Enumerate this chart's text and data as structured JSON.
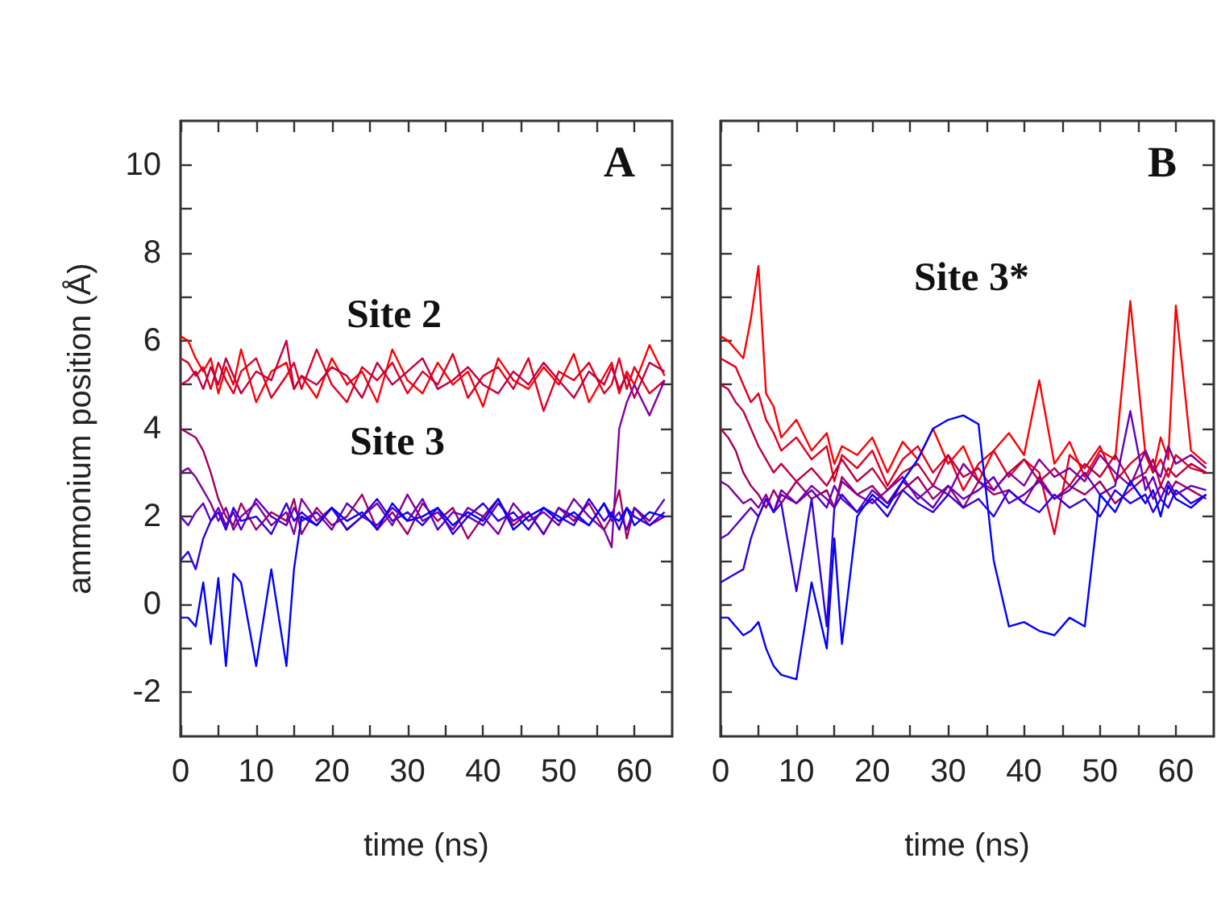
{
  "chart_data": [
    {
      "type": "line",
      "title": "A",
      "xlabel": "time (ns)",
      "ylabel": "ammonium position (Å)",
      "xlim": [
        0,
        65
      ],
      "ylim": [
        -3,
        11
      ],
      "xticks": [
        0,
        {
          "value": 5,
          "label": null
        },
        10,
        {
          "value": 15,
          "label": null
        },
        20,
        {
          "value": 25,
          "label": null
        },
        30,
        {
          "value": 35,
          "label": null
        },
        40,
        {
          "value": 45,
          "label": null
        },
        50,
        {
          "value": 55,
          "label": null
        },
        60
      ],
      "yticks": [
        -2,
        {
          "value": -1,
          "label": null
        },
        0,
        {
          "value": 1,
          "label": null
        },
        2,
        {
          "value": 3,
          "label": null
        },
        4,
        {
          "value": 5,
          "label": null
        },
        6,
        {
          "value": 7,
          "label": null
        },
        8,
        {
          "value": 9,
          "label": null
        },
        10
      ],
      "grid": false,
      "marker": "none",
      "line_style": "solid",
      "annotations": [
        "Site 2",
        "Site 3"
      ],
      "x": [
        0,
        1,
        2,
        3,
        4,
        5,
        6,
        7,
        8,
        10,
        12,
        14,
        15,
        16,
        18,
        20,
        22,
        24,
        26,
        28,
        30,
        32,
        34,
        36,
        38,
        40,
        42,
        44,
        46,
        48,
        50,
        52,
        54,
        56,
        57,
        58,
        59,
        60,
        62,
        64
      ],
      "series": [
        {
          "color": "#ff0000",
          "values": [
            6.1,
            6.0,
            5.6,
            5.3,
            5.6,
            4.8,
            5.4,
            5.0,
            5.8,
            4.6,
            5.3,
            5.5,
            4.9,
            5.2,
            4.7,
            5.6,
            5.0,
            5.3,
            4.6,
            5.8,
            5.1,
            4.8,
            5.5,
            5.0,
            5.3,
            4.5,
            5.6,
            5.1,
            4.9,
            5.4,
            5.0,
            5.7,
            4.6,
            5.2,
            5.5,
            4.8,
            5.3,
            5.0,
            5.9,
            5.2
          ]
        },
        {
          "color": "#e00020",
          "values": [
            5.6,
            5.5,
            5.2,
            5.4,
            4.9,
            5.5,
            5.1,
            4.8,
            5.3,
            5.6,
            4.7,
            5.2,
            5.5,
            4.9,
            5.8,
            5.0,
            4.6,
            5.4,
            5.1,
            5.5,
            4.8,
            5.3,
            5.0,
            5.7,
            4.7,
            5.2,
            5.4,
            4.9,
            5.6,
            4.4,
            5.3,
            5.1,
            5.5,
            4.8,
            5.0,
            5.6,
            4.9,
            5.4,
            4.8,
            5.1
          ]
        },
        {
          "color": "#c00040",
          "values": [
            5.0,
            5.1,
            5.3,
            4.9,
            5.4,
            5.0,
            5.6,
            5.2,
            4.8,
            5.3,
            5.1,
            6.0,
            4.9,
            5.2,
            5.0,
            5.4,
            5.2,
            4.7,
            5.5,
            5.0,
            5.3,
            5.6,
            4.9,
            5.1,
            5.4,
            5.0,
            4.8,
            5.3,
            5.0,
            5.5,
            5.1,
            4.7,
            5.3,
            5.0,
            5.4,
            4.9,
            5.2,
            4.7,
            5.5,
            5.3
          ]
        },
        {
          "color": "#a00060",
          "values": [
            4.0,
            3.9,
            3.8,
            3.5,
            3.0,
            2.4,
            2.0,
            1.8,
            2.3,
            1.7,
            2.1,
            1.9,
            2.4,
            1.6,
            2.2,
            1.8,
            2.0,
            2.5,
            1.7,
            2.1,
            1.6,
            2.3,
            1.9,
            2.2,
            1.5,
            2.0,
            2.4,
            1.8,
            2.1,
            1.6,
            2.2,
            1.9,
            2.3,
            1.7,
            2.0,
            2.6,
            1.5,
            2.2,
            1.8,
            2.0
          ]
        },
        {
          "color": "#8000a0",
          "values": [
            3.0,
            3.1,
            2.9,
            2.6,
            2.3,
            1.9,
            2.2,
            1.7,
            2.0,
            2.3,
            1.8,
            2.1,
            1.6,
            2.4,
            1.9,
            2.2,
            1.7,
            2.0,
            2.3,
            1.8,
            2.5,
            1.9,
            2.1,
            1.7,
            2.2,
            2.0,
            1.6,
            2.3,
            1.9,
            2.1,
            1.8,
            2.4,
            2.0,
            1.7,
            1.3,
            4.0,
            4.6,
            5.0,
            4.3,
            5.1
          ]
        },
        {
          "color": "#6000c0",
          "values": [
            2.0,
            1.8,
            2.1,
            2.3,
            1.9,
            2.2,
            1.8,
            2.1,
            1.7,
            2.4,
            2.0,
            1.8,
            2.2,
            1.9,
            2.1,
            1.7,
            2.3,
            2.0,
            1.8,
            2.2,
            1.9,
            2.4,
            1.7,
            2.1,
            2.0,
            1.8,
            2.3,
            1.9,
            2.1,
            1.6,
            2.2,
            2.0,
            1.8,
            2.3,
            1.9,
            2.1,
            1.7,
            2.2,
            1.9,
            2.4
          ]
        },
        {
          "color": "#3000e0",
          "values": [
            1.0,
            1.2,
            0.8,
            1.5,
            1.9,
            2.1,
            1.7,
            2.2,
            1.9,
            2.0,
            1.6,
            2.3,
            1.9,
            2.1,
            1.8,
            2.2,
            1.7,
            2.0,
            2.4,
            1.9,
            2.1,
            1.8,
            2.2,
            1.6,
            2.0,
            2.3,
            1.9,
            2.1,
            1.7,
            2.2,
            2.0,
            1.8,
            2.4,
            1.9,
            2.1,
            1.7,
            2.2,
            2.0,
            1.8,
            2.1
          ]
        },
        {
          "color": "#0000ff",
          "values": [
            -0.3,
            -0.3,
            -0.5,
            0.5,
            -0.9,
            0.6,
            -1.4,
            0.7,
            0.5,
            -1.4,
            0.8,
            -1.4,
            0.8,
            2.0,
            1.8,
            2.2,
            1.9,
            2.1,
            1.7,
            2.3,
            1.9,
            2.0,
            2.2,
            1.8,
            2.1,
            1.9,
            2.4,
            1.7,
            2.0,
            2.2,
            1.9,
            2.1,
            1.8,
            2.3,
            2.0,
            1.9,
            2.2,
            1.8,
            2.1,
            2.0
          ]
        }
      ]
    },
    {
      "type": "line",
      "title": "B",
      "xlabel": "time (ns)",
      "xlim": [
        0,
        65
      ],
      "ylim": [
        -3,
        11
      ],
      "tick_labels": "x",
      "xticks": [
        0,
        {
          "value": 5,
          "label": null
        },
        10,
        {
          "value": 15,
          "label": null
        },
        20,
        {
          "value": 25,
          "label": null
        },
        30,
        {
          "value": 35,
          "label": null
        },
        40,
        {
          "value": 45,
          "label": null
        },
        50,
        {
          "value": 55,
          "label": null
        },
        60
      ],
      "yticks": [
        {
          "value": -2,
          "label": null
        },
        {
          "value": -1,
          "label": null
        },
        {
          "value": 0,
          "label": null
        },
        {
          "value": 1,
          "label": null
        },
        {
          "value": 2,
          "label": null
        },
        {
          "value": 3,
          "label": null
        },
        {
          "value": 4,
          "label": null
        },
        {
          "value": 5,
          "label": null
        },
        {
          "value": 6,
          "label": null
        },
        {
          "value": 7,
          "label": null
        },
        {
          "value": 8,
          "label": null
        },
        {
          "value": 9,
          "label": null
        },
        {
          "value": 10,
          "label": null
        }
      ],
      "grid": false,
      "marker": "none",
      "line_style": "solid",
      "annotations": [
        "Site 3*"
      ],
      "x": [
        0,
        1,
        2,
        3,
        4,
        5,
        6,
        7,
        8,
        10,
        12,
        14,
        15,
        16,
        18,
        20,
        22,
        24,
        26,
        28,
        30,
        32,
        34,
        36,
        38,
        40,
        42,
        44,
        46,
        48,
        50,
        52,
        54,
        56,
        57,
        58,
        59,
        60,
        62,
        64
      ],
      "series": [
        {
          "color": "#ff0000",
          "values": [
            6.1,
            6.0,
            5.8,
            5.6,
            6.5,
            7.7,
            4.8,
            4.5,
            3.8,
            4.2,
            3.5,
            3.9,
            3.2,
            3.6,
            3.4,
            3.8,
            3.0,
            3.7,
            3.3,
            4.0,
            3.2,
            3.6,
            2.8,
            3.5,
            3.9,
            3.4,
            5.1,
            3.2,
            3.7,
            2.9,
            3.5,
            3.3,
            6.9,
            3.4,
            3.0,
            3.8,
            3.3,
            6.8,
            3.5,
            3.2
          ]
        },
        {
          "color": "#e00020",
          "values": [
            5.6,
            5.5,
            5.4,
            5.0,
            4.6,
            4.8,
            4.2,
            3.9,
            3.5,
            3.8,
            3.3,
            3.6,
            2.8,
            3.4,
            3.1,
            3.5,
            2.7,
            3.3,
            3.6,
            3.0,
            3.4,
            2.6,
            3.2,
            3.5,
            2.9,
            3.3,
            3.0,
            1.6,
            3.4,
            3.1,
            3.6,
            2.8,
            3.2,
            3.5,
            3.0,
            3.3,
            2.9,
            3.4,
            3.1,
            3.0
          ]
        },
        {
          "color": "#c00040",
          "values": [
            5.0,
            4.9,
            4.6,
            4.4,
            4.0,
            3.6,
            3.3,
            3.0,
            3.2,
            2.8,
            3.1,
            2.7,
            3.0,
            3.3,
            2.8,
            3.1,
            2.6,
            3.0,
            3.2,
            2.7,
            3.4,
            2.9,
            3.1,
            2.6,
            3.0,
            3.3,
            2.8,
            3.1,
            2.7,
            3.2,
            2.9,
            3.4,
            2.8,
            3.0,
            3.3,
            2.7,
            3.1,
            2.9,
            3.2,
            3.0
          ]
        },
        {
          "color": "#a00060",
          "values": [
            4.0,
            3.8,
            3.5,
            3.0,
            2.7,
            2.5,
            2.2,
            2.6,
            2.3,
            2.8,
            2.4,
            2.6,
            2.2,
            2.9,
            2.5,
            2.7,
            2.3,
            2.6,
            2.9,
            2.4,
            2.7,
            2.2,
            2.8,
            2.5,
            2.6,
            2.3,
            2.9,
            2.4,
            2.7,
            2.5,
            2.8,
            2.3,
            2.6,
            2.9,
            2.4,
            2.7,
            2.5,
            2.8,
            2.6,
            2.4
          ]
        },
        {
          "color": "#8000a0",
          "values": [
            2.8,
            2.7,
            2.5,
            2.3,
            2.4,
            2.2,
            2.5,
            2.1,
            2.6,
            2.3,
            2.7,
            2.4,
            2.2,
            2.8,
            2.5,
            2.3,
            2.6,
            2.9,
            2.4,
            2.7,
            2.5,
            3.2,
            2.8,
            2.6,
            3.0,
            2.7,
            3.3,
            2.9,
            3.1,
            2.8,
            3.4,
            3.0,
            2.7,
            3.5,
            3.1,
            2.9,
            3.6,
            3.2,
            3.4,
            3.1
          ]
        },
        {
          "color": "#6000c0",
          "values": [
            1.5,
            1.6,
            1.8,
            2.0,
            2.2,
            2.0,
            2.4,
            2.1,
            2.5,
            2.3,
            2.6,
            2.2,
            2.7,
            2.4,
            2.1,
            2.6,
            2.3,
            2.8,
            2.5,
            2.2,
            2.7,
            2.4,
            2.6,
            2.9,
            2.3,
            2.5,
            2.8,
            2.4,
            2.6,
            3.0,
            2.5,
            2.7,
            4.4,
            2.6,
            2.9,
            2.4,
            2.8,
            2.5,
            2.7,
            2.6
          ]
        },
        {
          "color": "#3000e0",
          "values": [
            0.5,
            0.6,
            0.7,
            0.8,
            1.5,
            2.0,
            2.4,
            2.1,
            2.3,
            0.3,
            2.4,
            -0.5,
            2.2,
            2.5,
            2.1,
            2.4,
            2.0,
            2.6,
            2.3,
            2.1,
            2.5,
            2.2,
            2.4,
            2.0,
            2.6,
            2.3,
            2.1,
            2.5,
            2.2,
            2.4,
            2.0,
            2.6,
            2.3,
            2.5,
            2.1,
            2.4,
            2.2,
            2.6,
            2.3,
            2.5
          ]
        },
        {
          "color": "#0000ff",
          "values": [
            -0.3,
            -0.3,
            -0.5,
            -0.7,
            -0.6,
            -0.4,
            -1.0,
            -1.4,
            -1.6,
            -1.7,
            0.5,
            -1.0,
            1.5,
            -0.9,
            2.0,
            2.5,
            2.2,
            2.8,
            3.3,
            4.0,
            4.2,
            4.3,
            4.1,
            1.0,
            -0.5,
            -0.4,
            -0.6,
            -0.7,
            -0.3,
            -0.5,
            2.5,
            2.1,
            2.8,
            2.3,
            2.6,
            2.0,
            2.7,
            2.4,
            2.2,
            2.5
          ]
        }
      ]
    }
  ]
}
